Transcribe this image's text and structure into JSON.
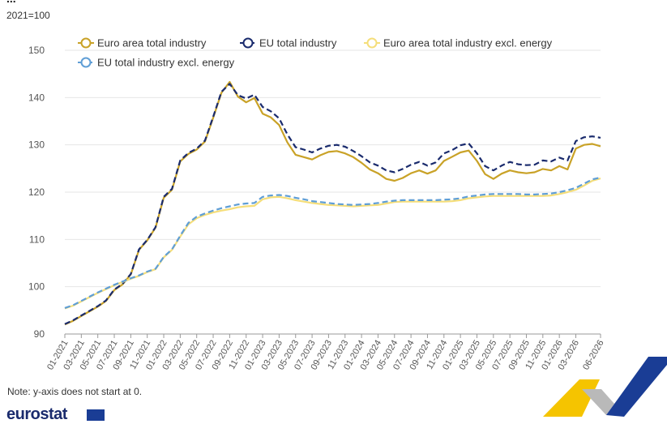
{
  "header": {
    "title_fragment": "...",
    "unit": "2021=100"
  },
  "footer": {
    "note": "Note: y-axis does not start at 0.",
    "brand": "eurostat"
  },
  "decoration": {
    "logo_colors": [
      "#f5c400",
      "#b9b9b9",
      "#1a3d95"
    ],
    "flag_icon": "eu-flag-icon"
  },
  "chart_data": {
    "type": "line",
    "title": "",
    "xlabel": "",
    "ylabel": "2021=100",
    "ylim": [
      90,
      150
    ],
    "yticks": [
      90,
      100,
      110,
      120,
      130,
      140,
      150
    ],
    "grid": true,
    "legend_position": "top",
    "x": [
      "01-2021",
      "02-2021",
      "03-2021",
      "04-2021",
      "05-2021",
      "06-2021",
      "07-2021",
      "08-2021",
      "09-2021",
      "10-2021",
      "11-2021",
      "12-2021",
      "01-2022",
      "02-2022",
      "03-2022",
      "04-2022",
      "05-2022",
      "06-2022",
      "07-2022",
      "08-2022",
      "09-2022",
      "10-2022",
      "11-2022",
      "12-2022",
      "01-2023",
      "02-2023",
      "03-2023",
      "04-2023",
      "05-2023",
      "06-2023",
      "07-2023",
      "08-2023",
      "09-2023",
      "10-2023",
      "11-2023",
      "12-2023",
      "01-2024",
      "02-2024",
      "03-2024",
      "04-2024",
      "05-2024",
      "06-2024",
      "07-2024",
      "08-2024",
      "09-2024",
      "10-2024",
      "11-2024",
      "12-2024",
      "01-2025",
      "02-2025",
      "03-2025",
      "04-2025",
      "05-2025",
      "06-2025",
      "07-2025",
      "08-2025",
      "09-2025",
      "10-2025",
      "11-2025",
      "12-2025",
      "01-2026",
      "02-2026",
      "03-2026",
      "04-2026",
      "05-2026",
      "06-2026"
    ],
    "tick_labels": [
      "01-2021",
      "03-2021",
      "05-2021",
      "07-2021",
      "09-2021",
      "11-2021",
      "01-2022",
      "03-2022",
      "05-2022",
      "07-2022",
      "09-2022",
      "11-2022",
      "01-2023",
      "03-2023",
      "05-2023",
      "07-2023",
      "09-2023",
      "11-2023",
      "01-2024",
      "03-2024",
      "05-2024",
      "07-2024",
      "09-2024",
      "11-2024",
      "01-2025",
      "03-2025",
      "05-2025",
      "07-2025",
      "09-2025",
      "11-2025",
      "01-2026",
      "03-2026",
      "06-2026"
    ],
    "series": [
      {
        "name": "Euro area total industry",
        "color": "#c9a227",
        "dash": "solid",
        "values": [
          92.0,
          92.8,
          93.8,
          94.8,
          95.8,
          97.0,
          99.3,
          100.5,
          102.6,
          107.8,
          109.8,
          112.5,
          118.8,
          120.5,
          126.5,
          128.1,
          129.0,
          130.7,
          135.7,
          141.0,
          143.3,
          140.2,
          139.0,
          139.9,
          136.6,
          135.8,
          134.2,
          130.5,
          127.9,
          127.4,
          126.9,
          127.8,
          128.5,
          128.7,
          128.2,
          127.4,
          126.2,
          124.8,
          124.0,
          122.8,
          122.4,
          123.0,
          124.0,
          124.6,
          123.9,
          124.6,
          126.6,
          127.5,
          128.4,
          128.8,
          126.6,
          123.8,
          122.8,
          123.9,
          124.6,
          124.2,
          124.0,
          124.2,
          124.9,
          124.6,
          125.5,
          124.8,
          129.2,
          130.0,
          130.2,
          129.7
        ]
      },
      {
        "name": "EU total industry",
        "color": "#1a2b6d",
        "dash": "dashed",
        "values": [
          92.1,
          92.9,
          93.9,
          94.9,
          95.9,
          97.1,
          99.4,
          100.6,
          102.7,
          107.9,
          109.9,
          112.6,
          119.0,
          120.7,
          126.7,
          128.3,
          129.2,
          130.9,
          135.9,
          141.2,
          142.9,
          140.5,
          139.8,
          140.6,
          138.0,
          137.1,
          135.6,
          132.2,
          129.5,
          129.0,
          128.4,
          129.2,
          129.8,
          130.0,
          129.6,
          128.7,
          127.6,
          126.3,
          125.6,
          124.6,
          124.2,
          124.9,
          125.8,
          126.4,
          125.6,
          126.3,
          128.2,
          128.9,
          129.9,
          130.3,
          128.2,
          125.5,
          124.6,
          125.6,
          126.4,
          125.9,
          125.7,
          125.8,
          126.7,
          126.5,
          127.3,
          126.7,
          130.8,
          131.6,
          131.8,
          131.5
        ]
      },
      {
        "name": "Euro area total industry excl. energy",
        "color": "#f5de7a",
        "dash": "solid",
        "values": [
          95.4,
          96.0,
          96.9,
          97.8,
          98.7,
          99.5,
          100.3,
          101.0,
          101.7,
          102.3,
          103.1,
          103.7,
          106.2,
          107.8,
          110.6,
          113.2,
          114.5,
          115.2,
          115.7,
          116.1,
          116.4,
          116.8,
          117.0,
          117.1,
          118.5,
          118.9,
          119.0,
          118.7,
          118.3,
          118.0,
          117.7,
          117.5,
          117.3,
          117.2,
          117.1,
          117.0,
          117.1,
          117.2,
          117.3,
          117.6,
          117.9,
          118.0,
          118.0,
          118.0,
          118.0,
          118.0,
          118.0,
          118.1,
          118.3,
          118.7,
          118.9,
          119.1,
          119.2,
          119.2,
          119.2,
          119.2,
          119.2,
          119.2,
          119.2,
          119.3,
          119.6,
          120.0,
          120.5,
          121.4,
          122.4,
          122.9
        ]
      },
      {
        "name": "EU total industry excl. energy",
        "color": "#5f9ed6",
        "dash": "dashed",
        "values": [
          95.5,
          96.1,
          97.0,
          97.9,
          98.8,
          99.6,
          100.4,
          101.1,
          101.8,
          102.4,
          103.2,
          103.8,
          106.3,
          107.9,
          110.8,
          113.5,
          114.8,
          115.5,
          116.1,
          116.6,
          117.0,
          117.4,
          117.6,
          117.7,
          119.0,
          119.3,
          119.4,
          119.2,
          118.8,
          118.5,
          118.1,
          117.9,
          117.7,
          117.5,
          117.4,
          117.3,
          117.4,
          117.5,
          117.7,
          118.0,
          118.2,
          118.3,
          118.3,
          118.3,
          118.3,
          118.3,
          118.4,
          118.5,
          118.7,
          119.1,
          119.3,
          119.5,
          119.6,
          119.6,
          119.6,
          119.6,
          119.5,
          119.5,
          119.6,
          119.7,
          120.0,
          120.4,
          120.9,
          121.8,
          122.7,
          123.1
        ]
      }
    ]
  }
}
